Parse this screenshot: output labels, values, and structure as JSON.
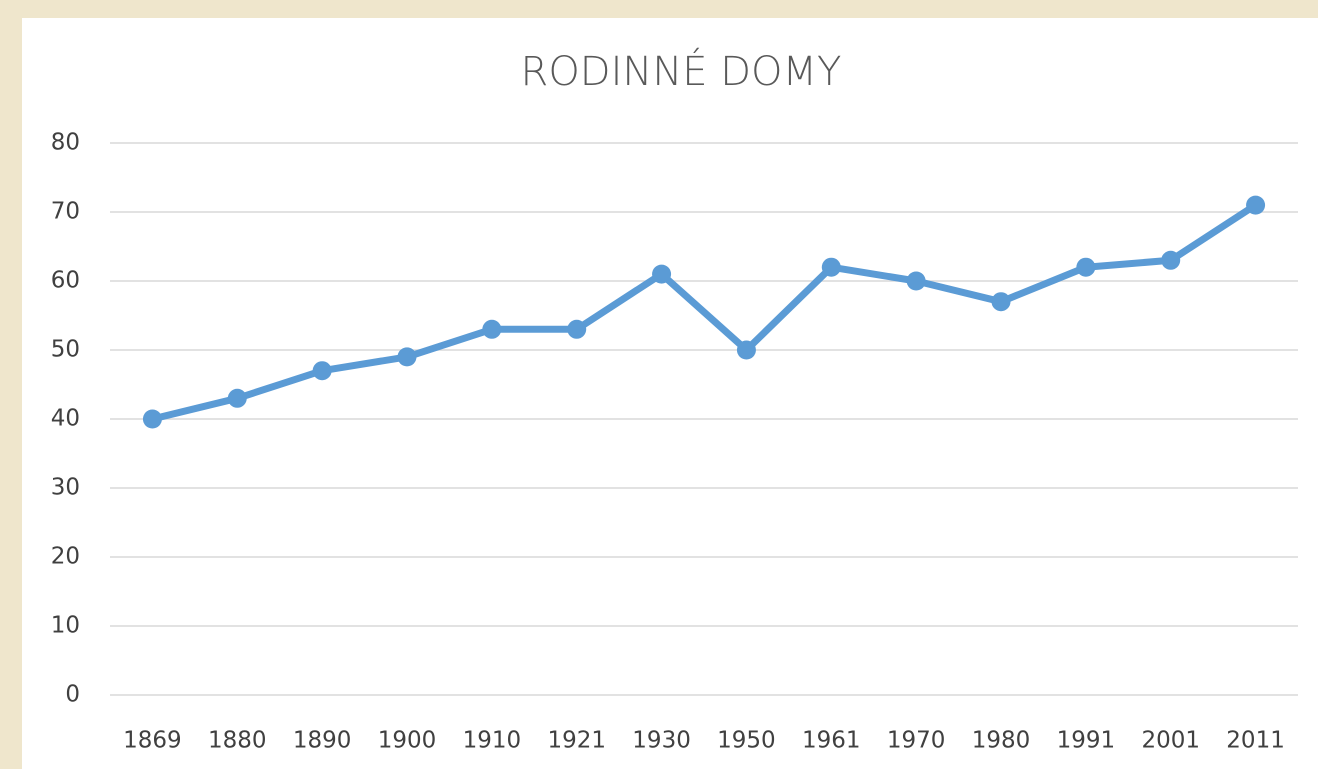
{
  "chart_data": {
    "type": "line",
    "title": "RODINNÉ DOMY",
    "categories": [
      "1869",
      "1880",
      "1890",
      "1900",
      "1910",
      "1921",
      "1930",
      "1950",
      "1961",
      "1970",
      "1980",
      "1991",
      "2001",
      "2011"
    ],
    "values": [
      40,
      43,
      47,
      49,
      53,
      53,
      61,
      50,
      62,
      60,
      57,
      62,
      63,
      71
    ],
    "color": "#5b9bd5",
    "ylim": [
      0,
      80
    ],
    "yticks": [
      0,
      10,
      20,
      30,
      40,
      50,
      60,
      70,
      80
    ],
    "grid": true
  }
}
